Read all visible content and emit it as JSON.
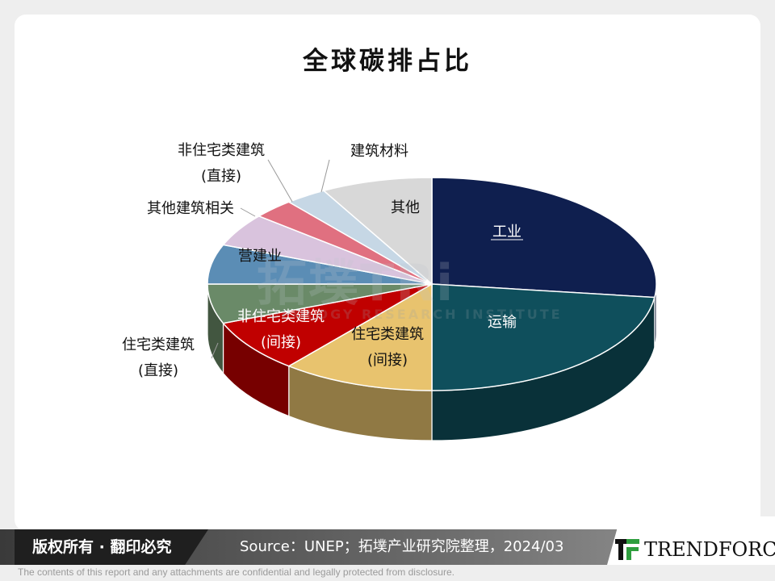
{
  "chart_data": {
    "type": "pie",
    "title": "全球碳排占比",
    "categories": [
      "工业",
      "运输",
      "住宅类建筑 (间接)",
      "非住宅类建筑 (间接)",
      "住宅类建筑 (直接)",
      "营建业",
      "其他建筑相关",
      "非住宅类建筑 (直接)",
      "建筑材料",
      "其他"
    ],
    "values": [
      27,
      23,
      11,
      8,
      6,
      6,
      5,
      3,
      3,
      8
    ],
    "colors": [
      "#0f1f4f",
      "#0f4f5c",
      "#e8c36e",
      "#c00000",
      "#6a8a68",
      "#5b8db5",
      "#d9c3dd",
      "#e07080",
      "#c6d7e5",
      "#d8d8d8"
    ],
    "labels": [
      [
        "工业"
      ],
      [
        "运输"
      ],
      [
        "住宅类建筑",
        "(间接)"
      ],
      [
        "非住宅类建筑",
        "(间接)"
      ],
      [
        "住宅类建筑",
        "(直接)"
      ],
      [
        "营建业"
      ],
      [
        "其他建筑相关"
      ],
      [
        "非住宅类建筑",
        "(直接)"
      ],
      [
        "建筑材料"
      ],
      [
        "其他"
      ]
    ],
    "grid": false,
    "legend": "none"
  },
  "watermark": {
    "main": "拓墣TRi",
    "sub": "TOPOLOGY RESEARCH INSTITUTE"
  },
  "footer": {
    "copyright": "版权所有 · 翻印必究",
    "source": "Source：UNEP；拓墣产业研究院整理，2024/03",
    "brand": "TRENDFORCE",
    "disclaimer": "The contents of this report and any attachments are confidential and legally protected from disclosure."
  }
}
